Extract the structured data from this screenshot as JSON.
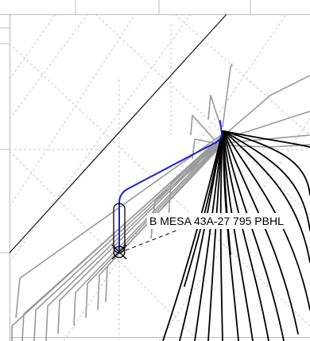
{
  "view": {
    "type": "well-trajectory-map"
  },
  "highlighted_well": {
    "label": "B MESA 43A-27 795 PBHL",
    "color": "#1f1fd6"
  },
  "legend_colors": {
    "offset_wells_gray": "#9a9a9a",
    "offset_wells_black": "#000000",
    "grid_dotted": "#c8c8c8",
    "boundary_line": "#222222"
  },
  "icons": {
    "surface_location": "circle-marker-icon",
    "bottom_hole": "crossed-circle-icon"
  }
}
